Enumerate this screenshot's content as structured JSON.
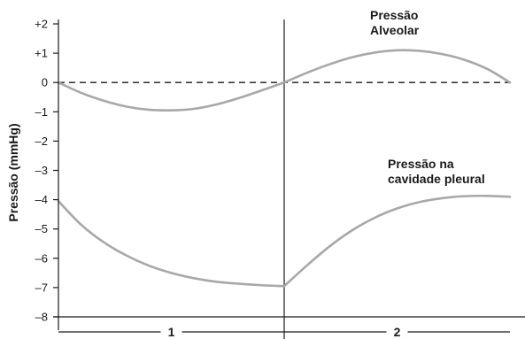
{
  "chart_data": {
    "type": "line",
    "title": "",
    "ylabel": "Pressão (mmHg)",
    "xlabel": "",
    "ylim": [
      -8,
      2
    ],
    "xlim": [
      0,
      2
    ],
    "yticks": [
      2,
      1,
      0,
      -1,
      -2,
      -3,
      -4,
      -5,
      -6,
      -7,
      -8
    ],
    "ytick_labels": [
      "+2",
      "+1",
      "0",
      "–1",
      "–2",
      "–3",
      "–4",
      "–5",
      "–6",
      "–7",
      "–8"
    ],
    "grid": false,
    "baseline_y": 0,
    "phase_divider_x": 1,
    "phases": [
      {
        "label": "1",
        "x_start": 0,
        "x_end": 1
      },
      {
        "label": "2",
        "x_start": 1,
        "x_end": 2
      }
    ],
    "series": [
      {
        "name": "Pressão Alveolar",
        "label_lines": [
          "Pressão",
          "Alveolar"
        ],
        "color": "#a8a8a8",
        "x": [
          0,
          0.1,
          0.2,
          0.3,
          0.4,
          0.5,
          0.6,
          0.7,
          0.8,
          0.9,
          1.0,
          1.1,
          1.2,
          1.3,
          1.4,
          1.5,
          1.6,
          1.7,
          1.8,
          1.9,
          2.0
        ],
        "y": [
          0,
          -0.35,
          -0.62,
          -0.82,
          -0.93,
          -0.95,
          -0.9,
          -0.75,
          -0.53,
          -0.27,
          0,
          0.33,
          0.62,
          0.86,
          1.02,
          1.1,
          1.08,
          0.97,
          0.77,
          0.46,
          0
        ]
      },
      {
        "name": "Pressão na cavidade pleural",
        "label_lines": [
          "Pressão na",
          "cavidade pleural"
        ],
        "color": "#a8a8a8",
        "x": [
          0,
          0.1,
          0.2,
          0.3,
          0.4,
          0.5,
          0.6,
          0.7,
          0.8,
          0.9,
          1.0,
          1.1,
          1.2,
          1.3,
          1.4,
          1.5,
          1.6,
          1.7,
          1.8,
          1.9,
          2.0
        ],
        "y": [
          -4.05,
          -4.85,
          -5.45,
          -5.9,
          -6.25,
          -6.5,
          -6.68,
          -6.8,
          -6.87,
          -6.92,
          -6.95,
          -6.25,
          -5.6,
          -5.05,
          -4.62,
          -4.3,
          -4.08,
          -3.95,
          -3.88,
          -3.87,
          -3.9
        ]
      }
    ]
  }
}
